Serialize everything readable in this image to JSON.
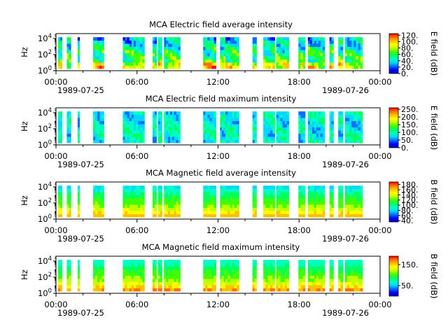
{
  "colorscale": [
    "#0000bf",
    "#0000ff",
    "#0070ff",
    "#00d8ff",
    "#00ffc0",
    "#00ff60",
    "#40ff00",
    "#c0ff00",
    "#ffff00",
    "#ffc000",
    "#ff7000",
    "#ff0000"
  ],
  "time_axis": {
    "ticks": [
      "00:00",
      "06:00",
      "12:00",
      "18:00",
      "00:00"
    ],
    "start_date": "1989-07-25",
    "end_date": "1989-07-26",
    "range_hours": [
      0,
      24
    ]
  },
  "y_axis": {
    "label": "Hz",
    "scale": "log",
    "ticks": [
      "10^0",
      "10^2",
      "10^4"
    ]
  },
  "chart_data": [
    {
      "type": "heatmap",
      "title": "MCA  Electric field average intensity",
      "colorbar_label": "E field (dB)",
      "colorbar_ticks": [
        "0.",
        "20.",
        "40.",
        "60.",
        "80.",
        "100.",
        "120."
      ],
      "colorbar_range": [
        0,
        125
      ],
      "pattern": "avg"
    },
    {
      "type": "heatmap",
      "title": "MCA  Electric field maximum intensity",
      "colorbar_label": "E field (dB)",
      "colorbar_ticks": [
        "0.",
        "50.",
        "100.",
        "150.",
        "200.",
        "250."
      ],
      "colorbar_range": [
        0,
        260
      ],
      "pattern": "max"
    },
    {
      "type": "heatmap",
      "title": "MCA  Magnetic field average intensity",
      "colorbar_label": "B field (dB)",
      "colorbar_ticks": [
        "40.",
        "60.",
        "80.",
        "100.",
        "120.",
        "140.",
        "160.",
        "180."
      ],
      "colorbar_range": [
        35,
        190
      ],
      "pattern": "bavg"
    },
    {
      "type": "heatmap",
      "title": "MCA  Magnetic field maximum intensity",
      "colorbar_label": "B field (dB)",
      "colorbar_ticks": [
        "50.",
        "150."
      ],
      "colorbar_range": [
        0,
        190
      ],
      "pattern": "bmax"
    }
  ],
  "data_segments_hours": [
    [
      0.15,
      0.45
    ],
    [
      0.8,
      1.1
    ],
    [
      1.6,
      1.75
    ],
    [
      2.75,
      3.55
    ],
    [
      4.95,
      6.55
    ],
    [
      7.15,
      7.45
    ],
    [
      7.55,
      7.85
    ],
    [
      8.0,
      9.2
    ],
    [
      10.9,
      11.85
    ],
    [
      12.15,
      12.55
    ],
    [
      12.55,
      13.55
    ],
    [
      14.55,
      14.85
    ],
    [
      15.35,
      16.2
    ],
    [
      16.3,
      17.25
    ],
    [
      17.95,
      18.45
    ],
    [
      18.65,
      19.9
    ],
    [
      20.25,
      20.55
    ],
    [
      20.9,
      21.25
    ],
    [
      21.4,
      22.7
    ]
  ]
}
